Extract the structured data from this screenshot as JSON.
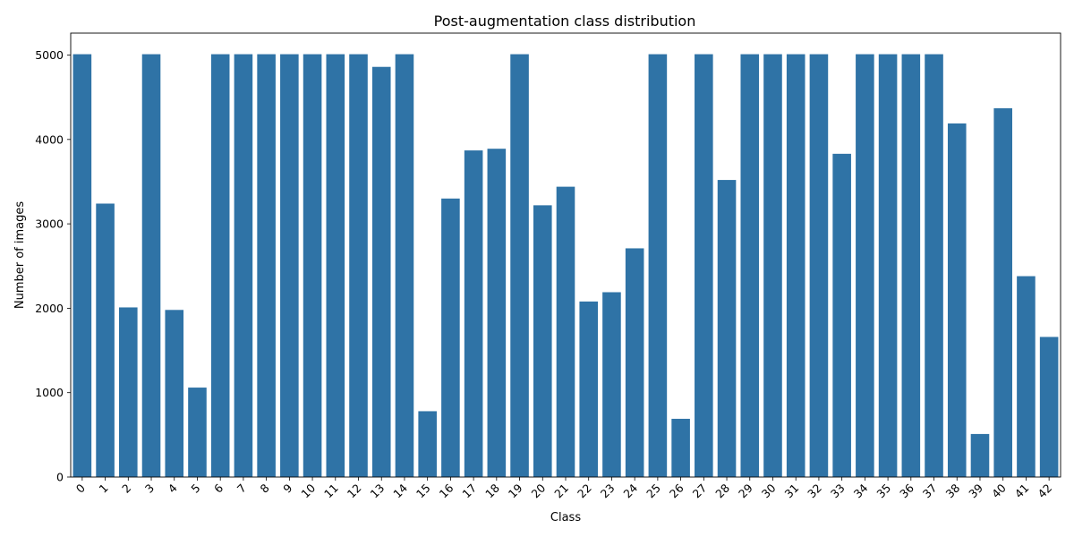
{
  "chart_data": {
    "type": "bar",
    "title": "Post-augmentation class distribution",
    "xlabel": "Class",
    "ylabel": "Number of images",
    "categories": [
      "0",
      "1",
      "2",
      "3",
      "4",
      "5",
      "6",
      "7",
      "8",
      "9",
      "10",
      "11",
      "12",
      "13",
      "14",
      "15",
      "16",
      "17",
      "18",
      "19",
      "20",
      "21",
      "22",
      "23",
      "24",
      "25",
      "26",
      "27",
      "28",
      "29",
      "30",
      "31",
      "32",
      "33",
      "34",
      "35",
      "36",
      "37",
      "38",
      "39",
      "40",
      "41",
      "42"
    ],
    "values": [
      5010,
      3240,
      2010,
      5010,
      1980,
      1060,
      5010,
      5010,
      5010,
      5010,
      5010,
      5010,
      5010,
      4860,
      5010,
      780,
      3300,
      3870,
      3890,
      5010,
      3220,
      3440,
      2080,
      2190,
      2710,
      5010,
      690,
      5010,
      3520,
      5010,
      5010,
      5010,
      5010,
      3830,
      5010,
      5010,
      5010,
      5010,
      4190,
      510,
      4370,
      2380,
      1660
    ],
    "y_ticks": [
      "0",
      "1000",
      "2000",
      "3000",
      "4000",
      "5000"
    ],
    "ylim": [
      0,
      5260
    ],
    "bar_color": "#2f73a6",
    "grid": false,
    "x_tick_rotation": -45
  }
}
